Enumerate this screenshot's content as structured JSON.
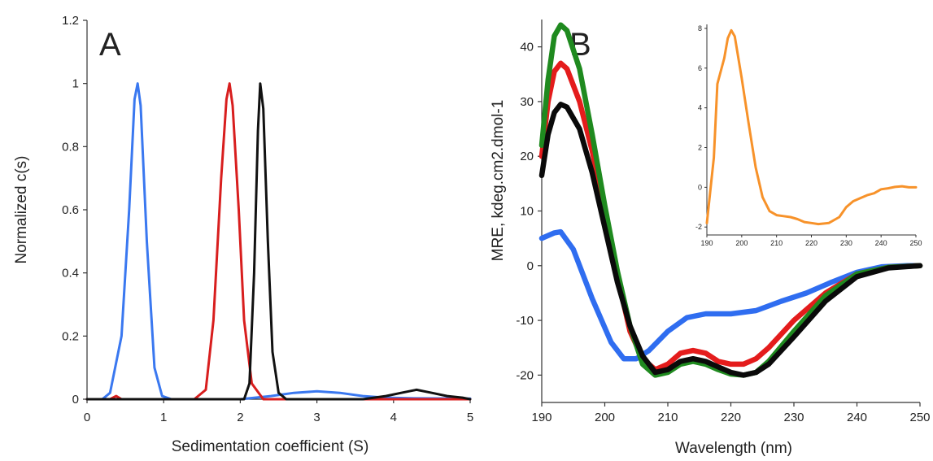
{
  "chart_data": [
    {
      "type": "line",
      "panel_label": "A",
      "xlabel": "Sedimentation coefficient (S)",
      "ylabel": "Normalized c(s)",
      "xlim": [
        0,
        5
      ],
      "ylim": [
        0,
        1.2
      ],
      "xticks": [
        "0",
        "1",
        "2",
        "3",
        "4",
        "5"
      ],
      "yticks": [
        "0",
        "0.2",
        "0.4",
        "0.6",
        "0.8",
        "1",
        "1.2"
      ],
      "grid": false,
      "series": [
        {
          "color": "#3a78f0",
          "x": [
            0,
            0.2,
            0.3,
            0.45,
            0.55,
            0.62,
            0.66,
            0.7,
            0.78,
            0.88,
            0.98,
            1.1,
            2.0,
            2.4,
            2.7,
            3.0,
            3.3,
            3.6,
            3.9,
            4.2,
            5.0
          ],
          "y": [
            0,
            0,
            0.02,
            0.2,
            0.6,
            0.95,
            1.0,
            0.93,
            0.5,
            0.1,
            0.01,
            0,
            0,
            0.01,
            0.02,
            0.025,
            0.02,
            0.01,
            0.005,
            0.003,
            0.002
          ]
        },
        {
          "color": "#d81e1e",
          "x": [
            0,
            0.3,
            0.38,
            0.45,
            1.4,
            1.55,
            1.65,
            1.75,
            1.82,
            1.86,
            1.9,
            1.98,
            2.05,
            2.15,
            2.3,
            5.0
          ],
          "y": [
            0,
            0,
            0.01,
            0,
            0,
            0.03,
            0.25,
            0.7,
            0.95,
            1.0,
            0.93,
            0.6,
            0.25,
            0.05,
            0,
            0
          ]
        },
        {
          "color": "#111111",
          "x": [
            0,
            2.05,
            2.12,
            2.18,
            2.23,
            2.26,
            2.3,
            2.36,
            2.42,
            2.5,
            2.6,
            3.2,
            3.6,
            3.9,
            4.1,
            4.3,
            4.5,
            4.7,
            4.9,
            5.0
          ],
          "y": [
            0,
            0,
            0.05,
            0.4,
            0.85,
            1.0,
            0.92,
            0.5,
            0.15,
            0.02,
            0,
            0,
            0,
            0.01,
            0.02,
            0.03,
            0.02,
            0.01,
            0.005,
            0
          ]
        }
      ]
    },
    {
      "type": "line",
      "panel_label": "B",
      "xlabel": "Wavelength (nm)",
      "ylabel": "MRE, kdeg.cm2.dmol-1",
      "xlim": [
        190,
        250
      ],
      "ylim": [
        -25,
        45
      ],
      "xticks": [
        "190",
        "200",
        "210",
        "220",
        "230",
        "240",
        "250"
      ],
      "yticks": [
        "-20",
        "-10",
        "0",
        "10",
        "20",
        "30",
        "40"
      ],
      "grid": false,
      "series": [
        {
          "color": "#2f6df0",
          "x": [
            190,
            192,
            193,
            195,
            198,
            201,
            203,
            205,
            207,
            210,
            213,
            216,
            220,
            224,
            228,
            232,
            236,
            240,
            244,
            248,
            250
          ],
          "y": [
            5,
            6,
            6.2,
            3,
            -6,
            -14,
            -17,
            -17,
            -15.5,
            -12,
            -9.5,
            -8.8,
            -8.8,
            -8.2,
            -6.5,
            -5,
            -3,
            -1.2,
            -0.2,
            0,
            0
          ]
        },
        {
          "color": "#e41c1c",
          "x": [
            190,
            191,
            192,
            193,
            194,
            196,
            198,
            200,
            202,
            204,
            206,
            208,
            210,
            212,
            214,
            216,
            218,
            220,
            222,
            224,
            226,
            230,
            235,
            240,
            245,
            250
          ],
          "y": [
            20,
            30,
            35.5,
            37,
            36,
            30,
            21,
            10,
            -2,
            -12,
            -17,
            -19,
            -18,
            -16,
            -15.5,
            -16,
            -17.5,
            -18,
            -18,
            -17,
            -15,
            -10,
            -5,
            -1.5,
            -0.3,
            0
          ]
        },
        {
          "color": "#1f8a1f",
          "x": [
            190,
            191,
            192,
            193,
            194,
            196,
            198,
            200,
            202,
            204,
            206,
            208,
            210,
            212,
            214,
            216,
            218,
            220,
            222,
            224,
            226,
            230,
            235,
            240,
            245,
            250
          ],
          "y": [
            22,
            34,
            42,
            44,
            43,
            36,
            24,
            11,
            -1,
            -11,
            -18,
            -20,
            -19.5,
            -18,
            -17.5,
            -18,
            -19,
            -19.8,
            -20,
            -19.5,
            -17.5,
            -12,
            -5.5,
            -1.5,
            -0.3,
            0
          ]
        },
        {
          "color": "#0a0a0a",
          "x": [
            190,
            191,
            192,
            193,
            194,
            196,
            198,
            200,
            202,
            204,
            206,
            208,
            210,
            212,
            214,
            216,
            218,
            220,
            222,
            224,
            226,
            230,
            235,
            240,
            245,
            250
          ],
          "y": [
            16.5,
            24,
            28,
            29.5,
            29,
            25,
            17,
            7,
            -3,
            -11,
            -16.5,
            -19.5,
            -19,
            -17.5,
            -17,
            -17.5,
            -18.5,
            -19.5,
            -20,
            -19.5,
            -18,
            -13,
            -6.5,
            -2,
            -0.4,
            0
          ]
        }
      ]
    },
    {
      "type": "line",
      "inset": true,
      "xlim": [
        190,
        250
      ],
      "ylim": [
        -2.4,
        8.2
      ],
      "xticks": [
        "190",
        "200",
        "210",
        "220",
        "230",
        "240",
        "250"
      ],
      "yticks": [
        "-2",
        "0",
        "2",
        "4",
        "6",
        "8"
      ],
      "grid": false,
      "series": [
        {
          "color": "#f7922a",
          "x": [
            190,
            192,
            193,
            195,
            196,
            197,
            198,
            200,
            202,
            204,
            206,
            208,
            210,
            212,
            214,
            216,
            218,
            220,
            222,
            225,
            228,
            230,
            232,
            234,
            236,
            238,
            240,
            242,
            244,
            246,
            248,
            250
          ],
          "y": [
            -1.8,
            1.5,
            5.2,
            6.5,
            7.5,
            7.9,
            7.6,
            5.5,
            3.2,
            1.0,
            -0.5,
            -1.2,
            -1.4,
            -1.45,
            -1.5,
            -1.6,
            -1.75,
            -1.8,
            -1.85,
            -1.8,
            -1.5,
            -1.0,
            -0.7,
            -0.55,
            -0.4,
            -0.3,
            -0.1,
            -0.05,
            0.02,
            0.05,
            0.0,
            0.0
          ]
        }
      ]
    }
  ]
}
